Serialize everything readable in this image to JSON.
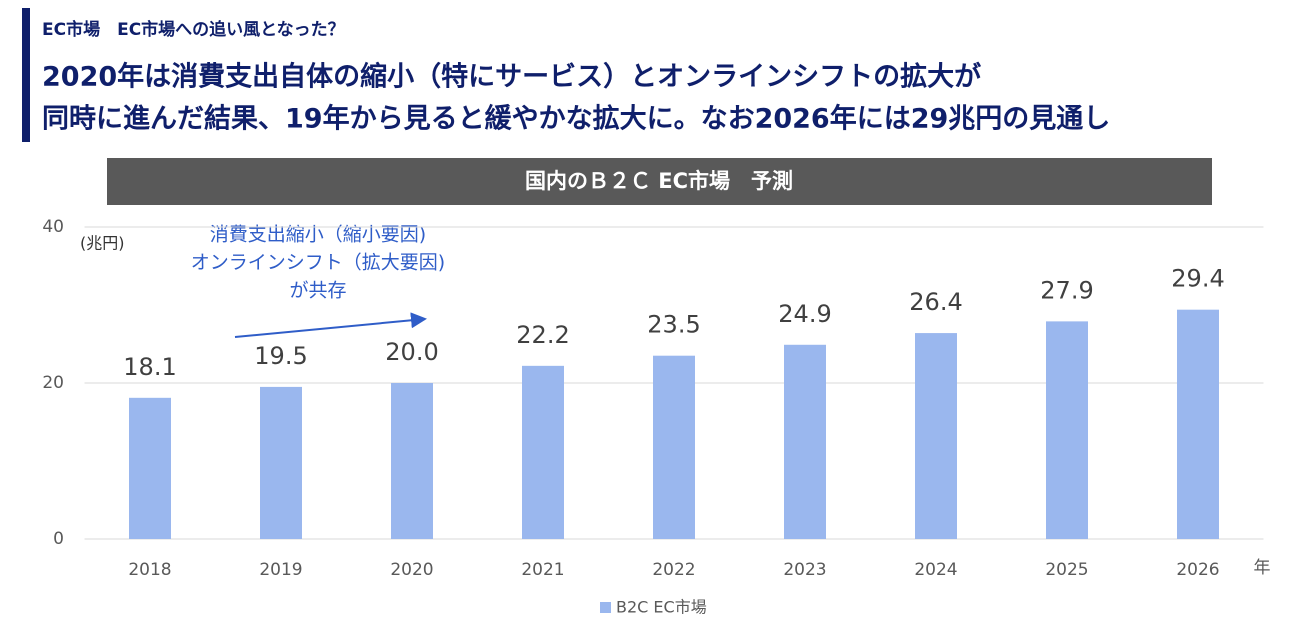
{
  "header": {
    "section": "EC市場　EC市場への追い風となった？",
    "title": [
      "2020年は消費支出自体の縮小（特にサービス）とオンラインシフトの拡大が",
      "同時に進んだ結果、19年から見ると緩やかな拡大に。なお2026年には29兆円の見通し"
    ]
  },
  "chart_data": {
    "type": "bar",
    "title": "国内のＢ２Ｃ EC市場　予測",
    "y_unit": "(兆円)",
    "x_unit": "年",
    "annotation": [
      "消費支出縮小（縮小要因)",
      "オンラインシフト（拡大要因)",
      "が共存"
    ],
    "categories": [
      "2018",
      "2019",
      "2020",
      "2021",
      "2022",
      "2023",
      "2024",
      "2025",
      "2026"
    ],
    "series": [
      {
        "name": "B2C EC市場",
        "color": "#9ab7ee",
        "values": [
          18.1,
          19.5,
          20.0,
          22.2,
          23.5,
          24.9,
          26.4,
          27.9,
          29.4
        ],
        "value_labels": [
          "18.1",
          "19.5",
          "20.0",
          "22.2",
          "23.5",
          "24.9",
          "26.4",
          "27.9",
          "29.4"
        ]
      }
    ],
    "ylim": [
      0,
      40
    ],
    "yticks": [
      0,
      20,
      40
    ],
    "grid": true,
    "legend": "bottom"
  }
}
